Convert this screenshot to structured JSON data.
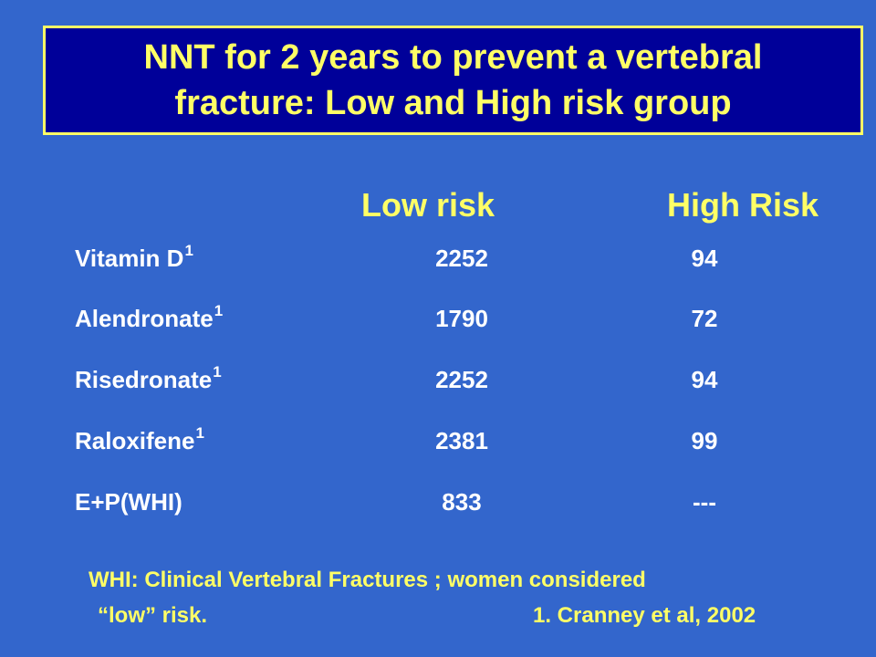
{
  "slide": {
    "title_line1": "NNT for 2 years to prevent a vertebral",
    "title_line2": "fracture: Low and High risk group",
    "column_headers": {
      "low": "Low risk",
      "high": "High Risk"
    },
    "rows": [
      {
        "drug": "Vitamin D",
        "sup": "1",
        "low": "2252",
        "high": "94"
      },
      {
        "drug": "Alendronate",
        "sup": "1",
        "low": "1790",
        "high": "72"
      },
      {
        "drug": "Risedronate",
        "sup": "1",
        "low": "2252",
        "high": "94"
      },
      {
        "drug": "Raloxifene",
        "sup": "1",
        "low": "2381",
        "high": "99"
      },
      {
        "drug": "E+P(WHI)",
        "sup": "",
        "low": "833",
        "high": "---"
      }
    ],
    "footnote_line1": "WHI: Clinical Vertebral Fractures  ; women considered",
    "footnote_line2_left": "“low” risk.",
    "footnote_line2_right": "1. Cranney et al, 2002"
  },
  "colors": {
    "background": "#3366cc",
    "title_box": "#000099",
    "title_text": "#ffff66",
    "body_text": "#ffffff"
  }
}
